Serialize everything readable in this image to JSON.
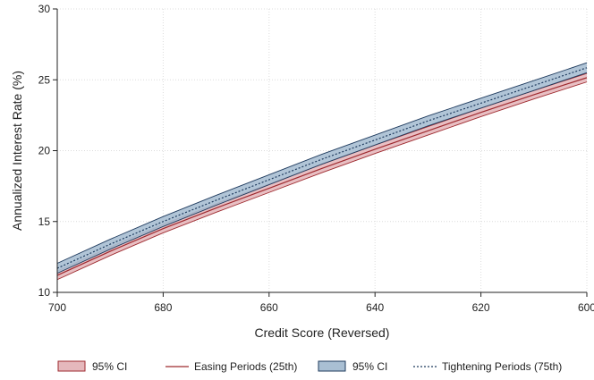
{
  "chart_data": {
    "type": "line",
    "title": "",
    "xlabel": "Credit Score (Reversed)",
    "ylabel": "Annualized Interest Rate (%)",
    "x_reversed": true,
    "xlim": [
      700,
      600
    ],
    "ylim": [
      10,
      30
    ],
    "x_ticks": [
      700,
      680,
      660,
      640,
      620,
      600
    ],
    "y_ticks": [
      10,
      15,
      20,
      25,
      30
    ],
    "grid": true,
    "legend_position": "bottom",
    "x": [
      700,
      690,
      680,
      670,
      660,
      650,
      640,
      630,
      620,
      610,
      600
    ],
    "series": [
      {
        "name": "Easing Periods (25th)",
        "style": "solid",
        "color": "#9e2a2f",
        "band_color": "#e5b8bc",
        "values": [
          11.2,
          12.9,
          14.5,
          15.95,
          17.35,
          18.75,
          20.1,
          21.4,
          22.7,
          23.95,
          25.15
        ],
        "ci_lower": [
          10.9,
          12.6,
          14.2,
          15.65,
          17.05,
          18.45,
          19.8,
          21.1,
          22.4,
          23.65,
          24.85
        ],
        "ci_upper": [
          11.5,
          13.2,
          14.8,
          16.25,
          17.65,
          19.05,
          20.4,
          21.7,
          23.0,
          24.25,
          25.45
        ]
      },
      {
        "name": "Tightening Periods (75th)",
        "style": "dotted",
        "color": "#1f3b5e",
        "band_color": "#a9bfd3",
        "values": [
          11.7,
          13.4,
          15.0,
          16.5,
          17.95,
          19.4,
          20.75,
          22.1,
          23.35,
          24.6,
          25.85
        ],
        "ci_lower": [
          11.35,
          13.05,
          14.65,
          16.15,
          17.6,
          19.05,
          20.4,
          21.75,
          23.0,
          24.25,
          25.5
        ],
        "ci_upper": [
          12.05,
          13.75,
          15.35,
          16.85,
          18.3,
          19.75,
          21.1,
          22.45,
          23.7,
          24.95,
          26.2
        ]
      }
    ],
    "legend": [
      {
        "kind": "band",
        "series": 0,
        "label": "95% CI"
      },
      {
        "kind": "line",
        "series": 0,
        "label": "Easing Periods (25th)"
      },
      {
        "kind": "band",
        "series": 1,
        "label": "95% CI"
      },
      {
        "kind": "line",
        "series": 1,
        "label": "Tightening Periods (75th)"
      }
    ]
  }
}
